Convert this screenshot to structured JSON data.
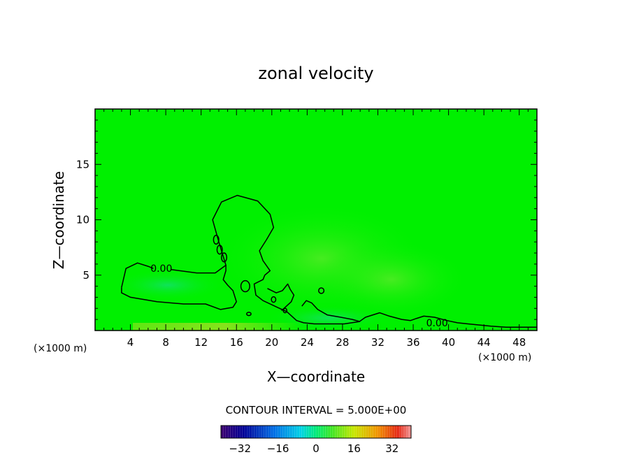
{
  "chart_data": {
    "type": "heatmap",
    "title": "zonal velocity",
    "xlabel": "X—coordinate",
    "ylabel": "Z—coordinate",
    "xlim": [
      0,
      50
    ],
    "ylim": [
      0,
      20
    ],
    "x_ticks": [
      4,
      8,
      12,
      16,
      20,
      24,
      28,
      32,
      36,
      40,
      44,
      48
    ],
    "x_tick_labels": [
      "4",
      "8",
      "12",
      "16",
      "20",
      "24",
      "28",
      "32",
      "36",
      "40",
      "44",
      "48"
    ],
    "y_ticks": [
      5,
      10,
      15
    ],
    "y_tick_labels": [
      "5",
      "10",
      "15"
    ],
    "x_unit_label_left": "(×1000 m)",
    "x_unit_label_right": "(×1000 m)",
    "contour_interval_text": "CONTOUR INTERVAL = 5.000E+00",
    "contour_labels": [
      {
        "text": "0.00",
        "x": 7.5,
        "z": 5.6
      },
      {
        "text": "0.00",
        "x": 38.7,
        "z": 0.7
      }
    ],
    "contour_level": 0,
    "colorbar": {
      "range": [
        -40,
        40
      ],
      "tick_values": [
        -32,
        -16,
        0,
        16,
        32
      ],
      "tick_labels": [
        "−32",
        "−16",
        "0",
        "16",
        "32"
      ]
    },
    "zero_contours": [
      [
        [
          3.0,
          3.9
        ],
        [
          3.5,
          5.6
        ],
        [
          4.8,
          6.1
        ],
        [
          6.0,
          5.8
        ],
        [
          6.6,
          5.6
        ]
      ],
      [
        [
          8.6,
          5.5
        ],
        [
          11.5,
          5.2
        ],
        [
          13.6,
          5.2
        ],
        [
          14.8,
          5.9
        ],
        [
          14.0,
          8.0
        ],
        [
          13.3,
          10.0
        ],
        [
          14.3,
          11.6
        ],
        [
          16.1,
          12.2
        ],
        [
          18.4,
          11.7
        ],
        [
          19.8,
          10.5
        ],
        [
          20.2,
          9.3
        ],
        [
          19.4,
          8.2
        ],
        [
          18.6,
          7.2
        ],
        [
          19.0,
          6.3
        ],
        [
          19.8,
          5.4
        ],
        [
          19.2,
          5.0
        ],
        [
          19.0,
          4.6
        ],
        [
          18.0,
          4.2
        ],
        [
          18.2,
          3.2
        ],
        [
          19.0,
          2.7
        ],
        [
          20.6,
          2.1
        ],
        [
          21.7,
          1.7
        ],
        [
          22.8,
          0.9
        ],
        [
          23.6,
          0.7
        ],
        [
          24.8,
          0.6
        ],
        [
          26.5,
          0.6
        ],
        [
          28.2,
          0.6
        ],
        [
          29.9,
          0.8
        ],
        [
          30.6,
          1.2
        ],
        [
          32.2,
          1.6
        ],
        [
          33.3,
          1.3
        ],
        [
          34.7,
          1.0
        ],
        [
          35.7,
          0.9
        ],
        [
          36.4,
          1.1
        ],
        [
          37.2,
          1.3
        ],
        [
          38.4,
          1.2
        ],
        [
          39.8,
          0.9
        ],
        [
          41.0,
          0.7
        ],
        [
          42.2,
          0.6
        ],
        [
          43.5,
          0.5
        ],
        [
          44.8,
          0.4
        ],
        [
          46.5,
          0.3
        ],
        [
          50.0,
          0.3
        ]
      ],
      [
        [
          3.0,
          3.9
        ],
        [
          3.0,
          3.4
        ],
        [
          4.0,
          3.0
        ],
        [
          7.0,
          2.6
        ],
        [
          10.0,
          2.4
        ],
        [
          12.5,
          2.4
        ],
        [
          14.2,
          1.9
        ],
        [
          15.6,
          2.1
        ],
        [
          16.0,
          2.6
        ],
        [
          15.6,
          3.6
        ],
        [
          15.0,
          4.1
        ],
        [
          14.5,
          4.6
        ],
        [
          14.8,
          5.4
        ],
        [
          14.8,
          5.9
        ]
      ],
      [
        [
          19.5,
          3.8
        ],
        [
          20.5,
          3.4
        ],
        [
          21.2,
          3.6
        ],
        [
          21.8,
          4.2
        ],
        [
          22.1,
          3.7
        ],
        [
          22.5,
          3.2
        ],
        [
          22.2,
          2.6
        ],
        [
          21.1,
          1.8
        ]
      ],
      [
        [
          23.4,
          2.2
        ],
        [
          23.9,
          2.7
        ],
        [
          24.5,
          2.5
        ],
        [
          25.2,
          1.9
        ],
        [
          26.3,
          1.4
        ],
        [
          27.8,
          1.2
        ],
        [
          29.1,
          1.0
        ],
        [
          30.0,
          0.8
        ]
      ]
    ],
    "small_contours": [
      [
        13.7,
        8.2,
        0.3,
        0.4
      ],
      [
        14.1,
        7.3,
        0.3,
        0.4
      ],
      [
        14.6,
        6.6,
        0.3,
        0.4
      ],
      [
        17.0,
        4.0,
        0.5,
        0.5
      ],
      [
        20.2,
        2.8,
        0.25,
        0.25
      ],
      [
        21.5,
        1.8,
        0.2,
        0.2
      ],
      [
        25.6,
        3.6,
        0.3,
        0.25
      ],
      [
        17.4,
        1.5,
        0.25,
        0.15
      ]
    ]
  }
}
